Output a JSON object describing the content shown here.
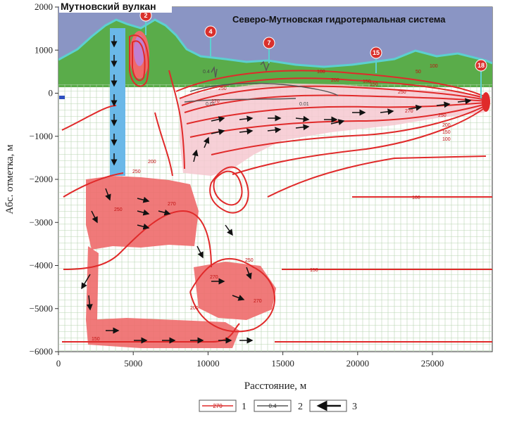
{
  "figure": {
    "title_left": "Мутновский вулкан",
    "title_right": "Северо-Мутновская гидротермальная система",
    "x_axis": {
      "label": "Расстояние, м",
      "ticks": [
        "0",
        "5000",
        "10000",
        "15000",
        "20000",
        "25000"
      ],
      "range": [
        0,
        29000
      ]
    },
    "y_axis": {
      "label": "Абс. отметка, м",
      "ticks": [
        "2000",
        "1000",
        "0",
        "−1000",
        "−2000",
        "−3000",
        "−4000",
        "−5000",
        "−6000"
      ],
      "range": [
        -6000,
        2000
      ]
    },
    "wells": [
      "2",
      "4",
      "7",
      "15",
      "18"
    ],
    "isotherm_labels": [
      "100",
      "150",
      "200",
      "250",
      "270",
      "50",
      "100",
      "150",
      "250",
      "270",
      "250",
      "200",
      "150",
      "100",
      "200",
      "250",
      "270",
      "250",
      "270",
      "270",
      "150",
      "100",
      "150",
      "200",
      "250"
    ],
    "pressure_labels": [
      "0.01",
      "0.01",
      "0.4"
    ],
    "legend": [
      {
        "key": "1",
        "sample_text": "270"
      },
      {
        "key": "2",
        "sample_text": "0.4"
      },
      {
        "key": "3",
        "sample_text": ""
      }
    ],
    "colors": {
      "sky": "#8a95c4",
      "volcano": "#5aac4a",
      "crater_rim": "#5cd0d0",
      "grid": "#b8d6b2",
      "isotherm": "#e02a2a",
      "hot_zone": "#ee6a6a",
      "warm_zone": "#f6c8d0",
      "conduit": "#6ab8e8",
      "magma_core": "#c080d0",
      "pressure_line": "#555555",
      "flow_arrow": "#111111"
    }
  }
}
